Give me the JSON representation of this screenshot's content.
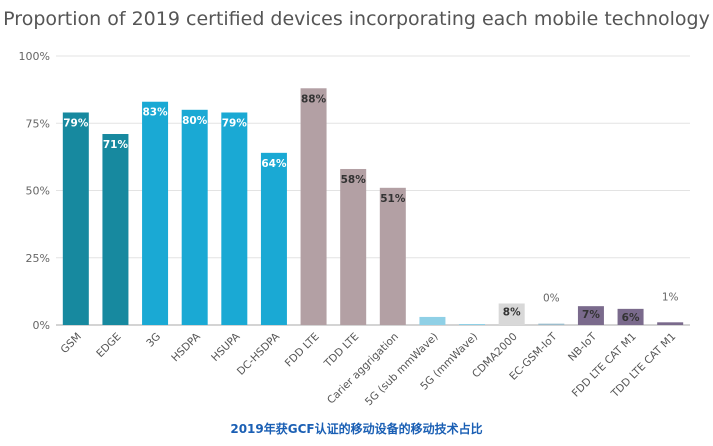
{
  "chart_data": {
    "type": "bar",
    "title": "Proportion of 2019 certified devices incorporating each mobile technology",
    "categories": [
      "GSM",
      "EDGE",
      "3G",
      "HSDPA",
      "HSUPA",
      "DC-HSDPA",
      "FDD LTE",
      "TDD LTE",
      "Carier aggrigation",
      "5G (sub mmWave)",
      "5G (mmWave)",
      "CDMA2000",
      "EC-GSM-IoT",
      "NB-IoT",
      "FDD LTE CAT M1",
      "TDD LTE CAT M1"
    ],
    "values": [
      79,
      71,
      83,
      80,
      79,
      64,
      88,
      58,
      51,
      3,
      0,
      8,
      0.5,
      7,
      6,
      1
    ],
    "data_labels": [
      "79%",
      "71%",
      "83%",
      "80%",
      "79%",
      "64%",
      "88%",
      "58%",
      "51%",
      "",
      "",
      "8%",
      "0%",
      "7%",
      "6%",
      "1%"
    ],
    "colors": [
      "#17899f",
      "#17899f",
      "#1aa9d4",
      "#1aa9d4",
      "#1aa9d4",
      "#1aa9d4",
      "#b3a0a4",
      "#b3a0a4",
      "#b3a0a4",
      "#8fd0e6",
      "#8fd0e6",
      "#d8d8d8",
      "#9bbccc",
      "#7a6a8c",
      "#7a6a8c",
      "#7a6a8c"
    ],
    "ylim": [
      0,
      100
    ],
    "yticks": [
      0,
      25,
      50,
      75,
      100
    ],
    "ytick_labels": [
      "0%",
      "25%",
      "50%",
      "75%",
      "100%"
    ],
    "xlabel": "",
    "ylabel": "",
    "grid": true,
    "legend": "none"
  },
  "caption": "2019年获GCF认证的移动设备的移动技术占比"
}
